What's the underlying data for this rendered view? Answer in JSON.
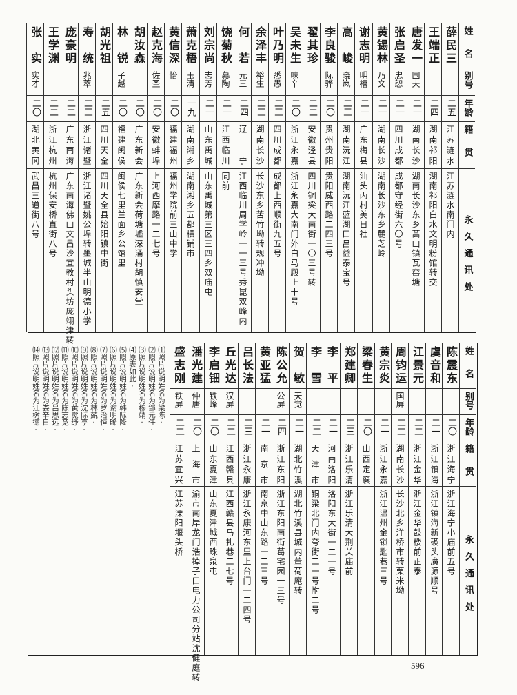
{
  "header": {
    "name": "姓名",
    "alias": "别号",
    "age": "年龄",
    "origin": "籍贯",
    "address": "永久通讯处"
  },
  "top_table": [
    {
      "name": "薛民三",
      "alias": "",
      "age": "二五",
      "origin": "江苏涟水",
      "address": "江苏涟水南门内"
    },
    {
      "name": "王端正",
      "alias": "",
      "age": "二四",
      "origin": "湖南祁阳",
      "address": "湖南祁阳白水文明粉馆转交"
    },
    {
      "name": "唐发一",
      "alias": "国夫",
      "age": "二一",
      "origin": "湖南长沙",
      "address": "湖南长沙东乡蒿山镇瓦窑塘"
    },
    {
      "name": "张启圣",
      "alias": "忠恕",
      "age": "二一",
      "origin": "四川成都",
      "address": "成都守经街六〇号"
    },
    {
      "name": "黄锡林",
      "alias": "乃文",
      "age": "二一",
      "origin": "湖南长沙",
      "address": "湖南长沙东乡麓芝岭"
    },
    {
      "name": "谢志明",
      "alias": "明禧",
      "age": "二一",
      "origin": "广东梅县",
      "address": "汕头丙村美日社"
    },
    {
      "name": "高峻",
      "alias": "晓岚",
      "age": "二三",
      "origin": "湖南沅江",
      "address": "湖南沅江蓝湖口吕益泰宝号"
    },
    {
      "name": "李良骏",
      "alias": "际骅",
      "age": "二〇",
      "origin": "贵州贵阳",
      "address": "贵阳威西路二四三号"
    },
    {
      "name": "翟其珍",
      "alias": "",
      "age": "二二",
      "origin": "安徽泾县",
      "address": "四川铜梁大南街一〇三号转"
    },
    {
      "name": "吴未生",
      "alias": "味辛",
      "age": "二〇",
      "origin": "浙江永嘉",
      "address": "浙江永嘉大南门外白马殿上十号"
    },
    {
      "name": "叶乃明",
      "alias": "悉愚",
      "age": "二三",
      "origin": "四川成都",
      "address": "成都上西顺街九五号"
    },
    {
      "name": "余泽丰",
      "alias": "裕生",
      "age": "二三",
      "origin": "湖南长沙",
      "address": "长沙东乡苦竹坳转规冲坳"
    },
    {
      "name": "何若",
      "alias": "元三",
      "age": "二四",
      "origin": "辽宁",
      "address": "江西临川周学岭一一三号秀崑双峰内"
    },
    {
      "name": "饶菊秋",
      "alias": "慕陶",
      "age": "二一",
      "origin": "江西临川",
      "address": "同前"
    },
    {
      "name": "刘宗尚",
      "alias": "志芳",
      "age": "二一",
      "origin": "山东禹城",
      "address": "山东禹城第三区三四乡双庙屯"
    },
    {
      "name": "萧克梧",
      "alias": "玉清",
      "age": "一九",
      "origin": "湖南湘乡",
      "address": "湖南湘乡五都横铺市"
    },
    {
      "name": "黄信深",
      "alias": "怡",
      "age": "二〇",
      "origin": "福建福州",
      "address": "福州学院前三山中学"
    },
    {
      "name": "赵克海",
      "alias": "佐圣",
      "age": "二〇",
      "origin": "安徽蚌埠",
      "address": "上河西摩路一二七号"
    },
    {
      "name": "胡汝森",
      "alias": "",
      "age": "二〇",
      "origin": "广东新会",
      "address": "广东新会荷塘墟深涌村胡慎安堂"
    },
    {
      "name": "林锐",
      "alias": "子越",
      "age": "二〇",
      "origin": "福建闽侯",
      "address": "闽侯七里兰面乡公馆里"
    },
    {
      "name": "胡光祖",
      "alias": "",
      "age": "二五",
      "origin": "四川天全",
      "address": "四川天全县始阳镇中街"
    },
    {
      "name": "寿统",
      "alias": "兆萃",
      "age": "二三",
      "origin": "浙江诸暨",
      "address": "浙江诸暨姚公埠转墨城半山明德小学"
    },
    {
      "name": "庞豪明",
      "alias": "",
      "age": "二二",
      "origin": "广东南海",
      "address": "广东南海佛山文昌沙宜教村头坊庞翊津转"
    },
    {
      "name": "王学渊",
      "alias": "",
      "age": "二二",
      "origin": "浙江杭州",
      "address": "杭州保安桥直街八号"
    },
    {
      "name": "张实",
      "alias": "实才",
      "age": "二〇",
      "origin": "湖北黄冈",
      "address": "武昌三道街八号"
    }
  ],
  "bottom_table": [
    {
      "name": "陈震东",
      "alias": "",
      "age": "二〇",
      "origin": "浙江海宁",
      "address": "浙江海宁小庙前五号"
    },
    {
      "name": "虞音和",
      "alias": "",
      "age": "二一",
      "origin": "浙江镇海",
      "address": "浙江镇海新碶头廣源顺号"
    },
    {
      "name": "江景元",
      "alias": "",
      "age": "二二",
      "origin": "浙江金华",
      "address": "浙江金华鼓楼前正泰"
    },
    {
      "name": "周钧运",
      "alias": "国屏",
      "age": "二二",
      "origin": "湖南长沙",
      "address": "长沙北乡洋桥市转栗米坳"
    },
    {
      "name": "黄宗炎",
      "alias": "",
      "age": "二一",
      "origin": "浙江永嘉",
      "address": "浙江温州金锁匙巷三号"
    },
    {
      "name": "梁春生",
      "alias": "",
      "age": "二〇",
      "origin": "山西定襄",
      "address": ""
    },
    {
      "name": "郑建卿",
      "alias": "",
      "age": "二三",
      "origin": "浙江乐清",
      "address": "浙江乐清大荆关庙前"
    },
    {
      "name": "李平",
      "alias": "",
      "age": "二一",
      "origin": "河南洛阳",
      "address": "洛阳东大街一二一号"
    },
    {
      "name": "李雪",
      "alias": "",
      "age": "二二",
      "origin": "天津市",
      "address": "铜梁北门内夸街二一号附二号"
    },
    {
      "name": "贺敏",
      "alias": "天觉",
      "age": "二一",
      "origin": "湖北竹溪",
      "address": "湖北竹溪县城内董荷庵转"
    },
    {
      "name": "陈公允",
      "alias": "公屏",
      "age": "二四",
      "origin": "浙江东阳",
      "address": "浙江东阳南街葛宅园十三号"
    },
    {
      "name": "黄亚猛",
      "alias": "",
      "age": "二一",
      "origin": "南京市",
      "address": "南京中山东路一二三号"
    },
    {
      "name": "吕长法",
      "alias": "",
      "age": "二三",
      "origin": "浙江永康",
      "address": "浙江永康河东里上台门一二四号"
    },
    {
      "name": "丘光达",
      "alias": "汉屏",
      "age": "二二",
      "origin": "江西赣县",
      "address": "江西赣县马扎巷二七号"
    },
    {
      "name": "李启钿",
      "alias": "铁峰",
      "age": "二〇",
      "origin": "山东夏津",
      "address": "山东夏津城西珠泉屯"
    },
    {
      "name": "潘光建",
      "alias": "仲唐",
      "age": "二〇",
      "origin": "上海市",
      "address": "渝市南岸龙门浩掉子口电力公司分站沈健庭转"
    },
    {
      "name": "盛志刚",
      "alias": "铁屏",
      "age": "二二",
      "origin": "江苏宜兴",
      "address": "江苏溧阳堰头桥"
    }
  ],
  "footnotes": [
    "⑴照片说明姓名为梁陈·",
    "⑵照片说明姓名为邹元任·",
    "⑶照片说明姓名为穆靖·",
    "⑷原表如此·",
    "⑸照片说明姓名为韩际隆·",
    "⑹照片说明姓名为谢明晞·",
    "⑺照片说明姓名为罗治恒·",
    "⑻照片说明姓名为林兢·",
    "⑼照片说明姓名为沈际亨·",
    "⑽照片说明姓名为黄觉纾·",
    "⑾照片说明姓名为陈志竞·",
    "⑿照片说明姓名为吕思远·",
    "⒀照片说明姓名为娄辛日·",
    "⒁照片说明姓名为江树德·"
  ],
  "page_number": "596"
}
